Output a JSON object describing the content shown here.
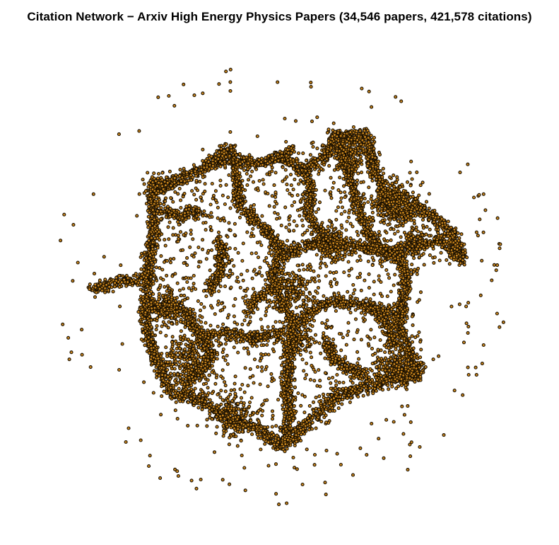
{
  "diagram": {
    "title": "Citation Network − Arxiv High Energy Physics Papers (34,546 papers, 421,578 citations)",
    "type": "network-graph",
    "layout": "force-directed",
    "node_fill": "#c8841c",
    "node_stroke": "#1a1000",
    "isolates_ring": true
  }
}
